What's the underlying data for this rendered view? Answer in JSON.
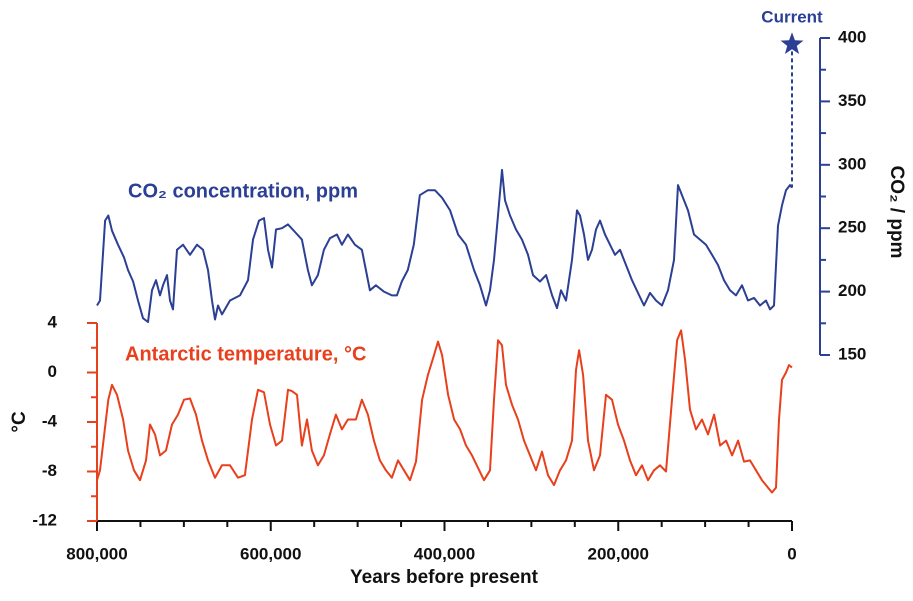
{
  "chart_data": {
    "type": "line",
    "xlabel": "Years before present",
    "ylabel": "°C",
    "y2label": "CO₂ / ppm",
    "xlim": [
      800000,
      0
    ],
    "xticks": [
      {
        "value": 800000,
        "label": "800,000"
      },
      {
        "value": 600000,
        "label": "600,000"
      },
      {
        "value": 400000,
        "label": "400,000"
      },
      {
        "value": 200000,
        "label": "200,000"
      },
      0
    ],
    "xminorticks": [
      750000,
      700000,
      650000,
      550000,
      500000,
      450000,
      350000,
      300000,
      250000,
      150000,
      100000,
      50000
    ],
    "ylim": [
      -12,
      4
    ],
    "yticks": [
      4,
      0,
      -4,
      -8,
      -12
    ],
    "yminorticks": [
      2,
      -2,
      -6,
      -10
    ],
    "y2lim": [
      150,
      400
    ],
    "y2ticks": [
      400,
      350,
      300,
      250,
      200,
      150
    ],
    "y2minorticks": [
      375,
      325,
      275,
      225,
      175
    ],
    "series": [
      {
        "name": "CO₂ concentration, ppm",
        "color": "#2b3f94",
        "axis": "y2",
        "x": [
          800000,
          796500,
          790700,
          787000,
          782700,
          775800,
          768900,
          764300,
          758500,
          752800,
          747000,
          741300,
          736700,
          732100,
          727500,
          724000,
          719400,
          716000,
          712500,
          707900,
          701000,
          692900,
          684900,
          678000,
          672200,
          667600,
          664200,
          660700,
          656100,
          646900,
          635400,
          626200,
          620400,
          613500,
          607800,
          603200,
          598600,
          594000,
          587100,
          580200,
          572100,
          564100,
          557200,
          552600,
          545700,
          538800,
          531900,
          523900,
          518100,
          511200,
          503100,
          495100,
          490500,
          485900,
          479000,
          469800,
          460600,
          454800,
          449100,
          442200,
          435300,
          428400,
          419100,
          411000,
          402800,
          393600,
          384400,
          375200,
          366000,
          359100,
          352200,
          347600,
          343000,
          338400,
          333800,
          330400,
          324600,
          317700,
          310800,
          303900,
          298100,
          290100,
          283100,
          276200,
          270500,
          265900,
          260100,
          253200,
          247500,
          244000,
          239400,
          234800,
          230200,
          225600,
          221000,
          215200,
          209500,
          203700,
          198000,
          191100,
          184200,
          177300,
          170400,
          163400,
          156500,
          149600,
          142700,
          135800,
          131200,
          126600,
          119700,
          112800,
          105900,
          99000,
          92100,
          85200,
          78300,
          71400,
          64500,
          57600,
          50600,
          43700,
          36800,
          29900,
          25300,
          20700,
          16100,
          11500,
          6900,
          2300,
          0
        ],
        "values": [
          189,
          193,
          256,
          260,
          248,
          237,
          227,
          217,
          208,
          193,
          179,
          176,
          201,
          209,
          197,
          205,
          213,
          193,
          186,
          233,
          237,
          229,
          237,
          233,
          217,
          193,
          178,
          189,
          182,
          193,
          197,
          209,
          241,
          256,
          258,
          233,
          219,
          249,
          250,
          253,
          247,
          241,
          217,
          205,
          213,
          233,
          242,
          245,
          237,
          245,
          237,
          233,
          217,
          201,
          205,
          200,
          197,
          197,
          208,
          217,
          237,
          276,
          280,
          280,
          274,
          264,
          245,
          237,
          217,
          205,
          189,
          201,
          225,
          260,
          296,
          272,
          260,
          249,
          241,
          229,
          213,
          208,
          213,
          197,
          187,
          201,
          193,
          225,
          264,
          260,
          245,
          225,
          233,
          249,
          256,
          245,
          237,
          229,
          233,
          221,
          209,
          199,
          189,
          199,
          193,
          189,
          201,
          225,
          284,
          276,
          264,
          245,
          241,
          237,
          229,
          221,
          209,
          201,
          197,
          205,
          193,
          195,
          189,
          193,
          186,
          189,
          252,
          268,
          280,
          284,
          282
        ]
      },
      {
        "name": "Antarctic temperature, °C",
        "color": "#e8401c",
        "x": [
          800000,
          796500,
          787000,
          782700,
          777000,
          770000,
          764300,
          757400,
          750500,
          743600,
          739000,
          733200,
          727500,
          720600,
          713700,
          706800,
          699900,
          692900,
          686000,
          679100,
          672200,
          664200,
          656100,
          646900,
          637700,
          629700,
          621600,
          614700,
          607800,
          600900,
          594000,
          587100,
          580200,
          575600,
          569800,
          564100,
          558300,
          552600,
          545700,
          538800,
          531900,
          525000,
          518100,
          511200,
          502000,
          495100,
          488200,
          481300,
          474400,
          467500,
          460600,
          453500,
          446600,
          439700,
          432800,
          425800,
          419100,
          412100,
          407500,
          402800,
          395900,
          389000,
          382100,
          375200,
          368300,
          361400,
          354500,
          347600,
          343000,
          338400,
          333800,
          329200,
          322300,
          315400,
          308500,
          301600,
          294700,
          287800,
          280900,
          273900,
          267000,
          260100,
          253200,
          248600,
          245100,
          240500,
          234800,
          227900,
          221000,
          214100,
          207200,
          200300,
          193400,
          186500,
          179600,
          172700,
          165800,
          158800,
          151900,
          145000,
          138100,
          132300,
          127700,
          123100,
          117400,
          110500,
          103600,
          96700,
          89700,
          82800,
          75900,
          69000,
          62100,
          55200,
          48300,
          41400,
          34500,
          27600,
          23000,
          18400,
          15000,
          11500,
          6900,
          3500,
          0
        ],
        "values": [
          -8.7,
          -7.9,
          -2.2,
          -1.0,
          -1.8,
          -3.8,
          -6.3,
          -7.9,
          -8.7,
          -7.1,
          -4.2,
          -5.0,
          -6.7,
          -6.3,
          -4.2,
          -3.4,
          -2.2,
          -2.1,
          -3.4,
          -5.5,
          -7.1,
          -8.5,
          -7.5,
          -7.5,
          -8.5,
          -8.3,
          -3.8,
          -1.4,
          -1.6,
          -4.2,
          -5.9,
          -5.5,
          -1.4,
          -1.5,
          -1.8,
          -5.9,
          -3.8,
          -6.3,
          -7.5,
          -6.7,
          -5.0,
          -3.4,
          -4.6,
          -3.8,
          -3.8,
          -2.2,
          -3.4,
          -5.5,
          -7.1,
          -7.9,
          -8.5,
          -7.1,
          -7.9,
          -8.7,
          -7.2,
          -2.2,
          -0.2,
          1.4,
          2.5,
          1.4,
          -1.8,
          -3.8,
          -4.6,
          -5.9,
          -6.7,
          -7.7,
          -8.7,
          -7.9,
          -2.2,
          2.6,
          2.2,
          -1.0,
          -2.6,
          -3.8,
          -5.5,
          -6.7,
          -7.9,
          -6.4,
          -8.3,
          -9.1,
          -7.9,
          -7.1,
          -5.5,
          0.2,
          1.8,
          -0.2,
          -5.5,
          -7.9,
          -6.7,
          -1.8,
          -2.2,
          -4.2,
          -5.5,
          -7.1,
          -8.3,
          -7.5,
          -8.7,
          -7.9,
          -7.5,
          -8.0,
          -2.2,
          2.6,
          3.4,
          1.0,
          -3.0,
          -4.6,
          -3.8,
          -5.0,
          -3.4,
          -5.9,
          -5.5,
          -6.7,
          -5.5,
          -7.2,
          -7.1,
          -7.9,
          -8.7,
          -9.3,
          -9.7,
          -9.3,
          -3.8,
          -0.6,
          0.0,
          0.6,
          0.4
        ]
      }
    ],
    "annotations": [
      {
        "text": "Current",
        "x": 0,
        "value": 395
      }
    ]
  }
}
